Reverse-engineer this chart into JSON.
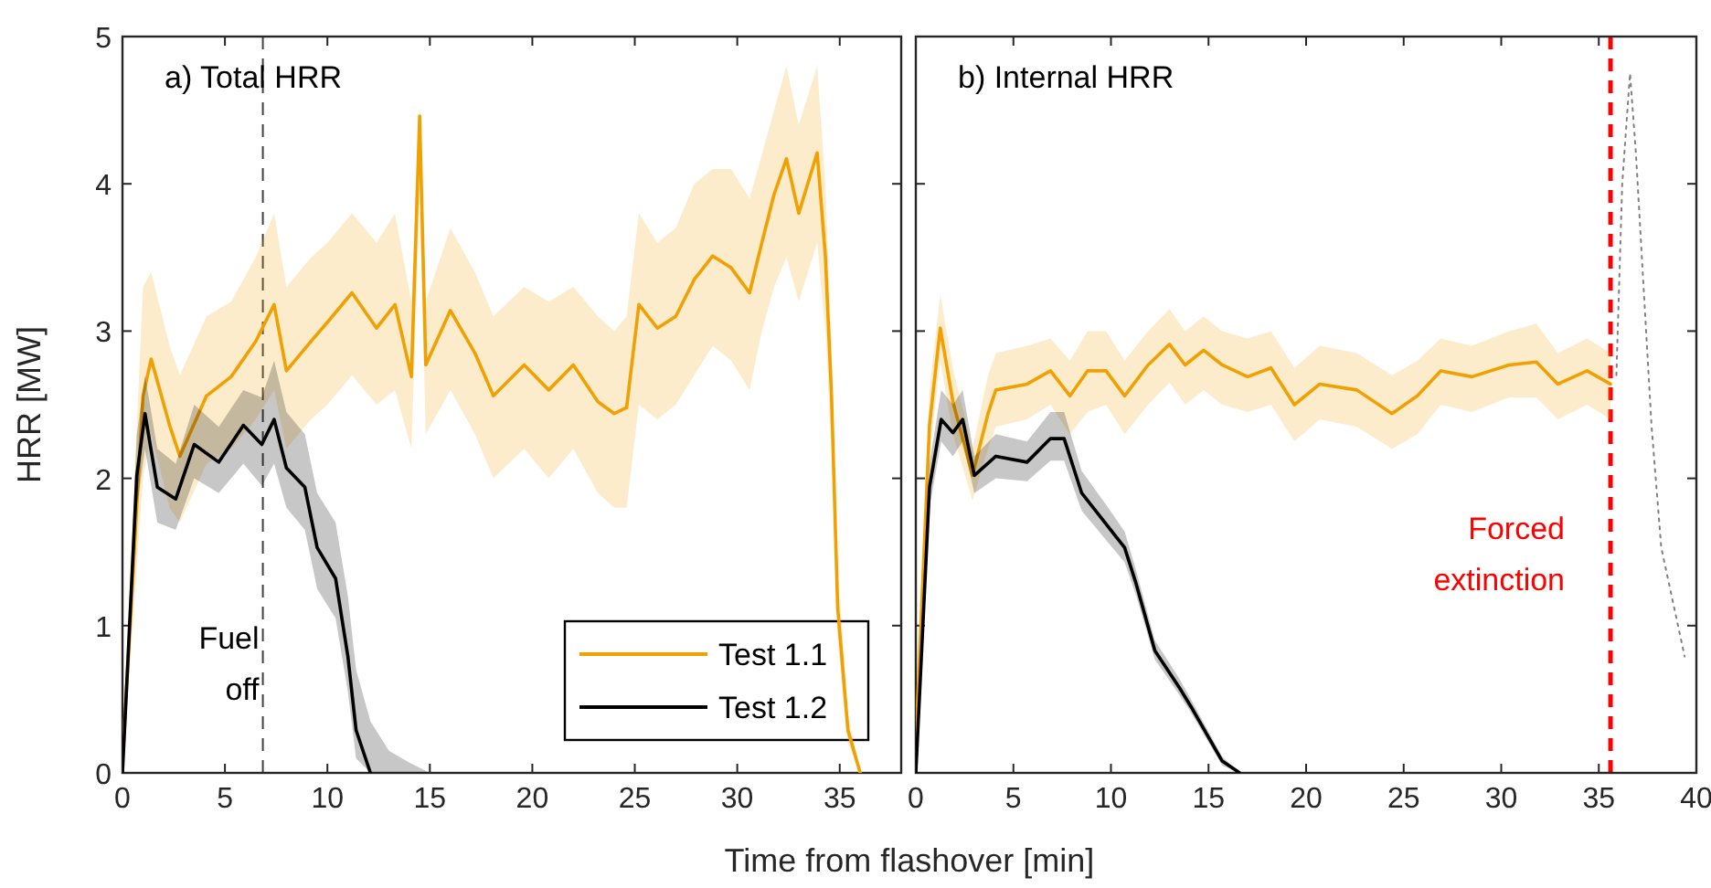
{
  "chart_data": [
    {
      "type": "line",
      "title": "a) Total HRR",
      "xlabel": "Time from flashover [min]",
      "ylabel": "HRR [MW]",
      "xlim": [
        0,
        38
      ],
      "xticks": [
        0,
        5,
        10,
        15,
        20,
        25,
        30,
        35
      ],
      "ylim": [
        0,
        5
      ],
      "yticks": [
        0,
        1,
        2,
        3,
        4,
        5
      ],
      "grid": false,
      "legend": "bottom right",
      "line_style": "solid",
      "marker": "none",
      "ref_lines": [
        {
          "axis": "x",
          "value": 6.85,
          "label": "Fuel off",
          "color": "#404040",
          "line_style": "dashed"
        }
      ],
      "series": [
        {
          "name": "Test 1.1",
          "color": "#f0a000",
          "x": [
            0,
            1,
            1.4,
            2.3,
            2.8,
            4.1,
            5.3,
            6.5,
            7.4,
            8,
            9.2,
            10,
            11.2,
            12.4,
            13.3,
            14.1,
            14.5,
            14.8,
            16,
            17.2,
            18.1,
            19.6,
            20.8,
            22,
            23.2,
            24,
            24.6,
            25.2,
            26.1,
            27,
            27.9,
            28.8,
            29.7,
            30.6,
            31.2,
            31.8,
            32.4,
            33,
            33.9,
            34.3,
            34.6,
            34.9,
            35.4,
            36
          ],
          "values": [
            0.08,
            2.56,
            2.81,
            2.36,
            2.15,
            2.56,
            2.69,
            2.93,
            3.18,
            2.73,
            2.93,
            3.06,
            3.26,
            3.02,
            3.18,
            2.69,
            4.46,
            2.77,
            3.14,
            2.85,
            2.56,
            2.77,
            2.6,
            2.77,
            2.52,
            2.44,
            2.48,
            3.18,
            3.02,
            3.1,
            3.35,
            3.51,
            3.43,
            3.26,
            3.6,
            3.93,
            4.17,
            3.8,
            4.21,
            3.51,
            2.56,
            1.12,
            0.29,
            0
          ],
          "lower": [
            0,
            2.0,
            2.3,
            1.8,
            1.7,
            2.1,
            2.2,
            2.4,
            2.6,
            2.2,
            2.4,
            2.5,
            2.7,
            2.5,
            2.6,
            2.2,
            3.9,
            2.3,
            2.6,
            2.3,
            2.0,
            2.2,
            2.0,
            2.2,
            1.9,
            1.8,
            1.8,
            2.5,
            2.4,
            2.5,
            2.7,
            2.9,
            2.8,
            2.6,
            3.0,
            3.3,
            3.5,
            3.2,
            3.6,
            3.0,
            2.2,
            0.9,
            0.2,
            0
          ],
          "upper": [
            0.2,
            3.3,
            3.4,
            2.9,
            2.7,
            3.1,
            3.2,
            3.5,
            3.8,
            3.3,
            3.5,
            3.6,
            3.8,
            3.6,
            3.8,
            3.2,
            4.5,
            3.2,
            3.7,
            3.4,
            3.1,
            3.3,
            3.2,
            3.3,
            3.1,
            3.0,
            3.1,
            3.8,
            3.6,
            3.7,
            4.0,
            4.1,
            4.1,
            3.9,
            4.2,
            4.5,
            4.8,
            4.4,
            4.8,
            4.0,
            2.9,
            1.4,
            0.4,
            0
          ]
        },
        {
          "name": "Test 1.2",
          "color": "#000000",
          "x": [
            0,
            0.7,
            1.1,
            1.7,
            2.6,
            3.5,
            4.7,
            5.9,
            6.8,
            7.4,
            8,
            8.9,
            9.5,
            10.4,
            11,
            11.4,
            12.1,
            13,
            14,
            15
          ],
          "values": [
            0,
            2.02,
            2.44,
            1.94,
            1.86,
            2.23,
            2.11,
            2.36,
            2.23,
            2.4,
            2.07,
            1.94,
            1.53,
            1.32,
            0.79,
            0.29,
            0,
            null,
            null,
            null
          ],
          "lower": [
            0,
            1.8,
            2.2,
            1.7,
            1.65,
            2.0,
            1.9,
            2.1,
            1.95,
            2.1,
            1.8,
            1.65,
            1.25,
            1.05,
            0.55,
            0.1,
            0,
            0,
            0,
            0
          ],
          "upper": [
            0.1,
            2.3,
            2.7,
            2.2,
            2.1,
            2.5,
            2.35,
            2.6,
            2.55,
            2.8,
            2.45,
            2.3,
            1.9,
            1.7,
            1.2,
            0.7,
            0.35,
            0.15,
            0.07,
            0
          ]
        }
      ]
    },
    {
      "type": "line",
      "title": "b) Internal HRR",
      "xlim": [
        0,
        40
      ],
      "xticks": [
        0,
        5,
        10,
        15,
        20,
        25,
        30,
        35,
        40
      ],
      "ylim": [
        0,
        5
      ],
      "yticks": [
        0,
        1,
        2,
        3,
        4,
        5
      ],
      "tick_labels": "x",
      "grid": false,
      "line_style": "solid",
      "marker": "none",
      "ref_lines": [
        {
          "axis": "x",
          "value": 35.6,
          "label": "Forced extinction",
          "color": "#ff0000",
          "line_style": "dashed"
        }
      ],
      "series": [
        {
          "color": "#f0a000",
          "x": [
            0,
            0.7,
            1.25,
            1.9,
            2.9,
            3.7,
            4.1,
            5.7,
            6.9,
            7.9,
            8.8,
            9.75,
            10.7,
            11.9,
            13,
            13.8,
            14.75,
            15.7,
            17,
            18.2,
            19.4,
            20.7,
            22.6,
            24.4,
            25.7,
            26.9,
            28.5,
            30.4,
            31.8,
            32.9,
            34.4,
            35.6
          ],
          "values": [
            0.2,
            2.36,
            3.02,
            2.52,
            2.02,
            2.44,
            2.6,
            2.64,
            2.73,
            2.56,
            2.73,
            2.73,
            2.56,
            2.77,
            2.91,
            2.77,
            2.87,
            2.77,
            2.69,
            2.75,
            2.5,
            2.64,
            2.6,
            2.44,
            2.56,
            2.73,
            2.69,
            2.77,
            2.79,
            2.64,
            2.73,
            2.64
          ],
          "lower": [
            0.1,
            2.15,
            2.8,
            2.3,
            1.85,
            2.2,
            2.35,
            2.4,
            2.5,
            2.3,
            2.45,
            2.5,
            2.3,
            2.5,
            2.65,
            2.5,
            2.6,
            2.5,
            2.45,
            2.5,
            2.25,
            2.4,
            2.35,
            2.2,
            2.3,
            2.5,
            2.45,
            2.55,
            2.55,
            2.4,
            2.5,
            2.4
          ],
          "upper": [
            0.3,
            2.6,
            3.25,
            2.75,
            2.2,
            2.7,
            2.85,
            2.9,
            2.95,
            2.8,
            3.0,
            3.0,
            2.8,
            3.0,
            3.15,
            3.0,
            3.1,
            3.0,
            2.95,
            3.0,
            2.75,
            2.9,
            2.85,
            2.7,
            2.8,
            2.95,
            2.9,
            3.0,
            3.05,
            2.85,
            2.95,
            2.85
          ]
        },
        {
          "color": "#000000",
          "x": [
            0,
            0.7,
            1.3,
            1.9,
            2.4,
            3,
            4.1,
            5.7,
            6.9,
            7.6,
            8.5,
            9.75,
            10.7,
            11.3,
            12.25,
            13.5,
            14.1,
            15.7,
            16.6
          ],
          "values": [
            0,
            1.94,
            2.4,
            2.31,
            2.4,
            2.02,
            2.15,
            2.11,
            2.27,
            2.27,
            1.9,
            1.69,
            1.53,
            1.28,
            0.83,
            0.58,
            0.45,
            0.08,
            0
          ],
          "lower": [
            0,
            1.8,
            2.25,
            2.15,
            2.25,
            1.9,
            2.0,
            1.98,
            2.12,
            2.12,
            1.78,
            1.58,
            1.43,
            1.2,
            0.77,
            0.53,
            0.41,
            0.05,
            0
          ],
          "upper": [
            0.05,
            2.1,
            2.6,
            2.5,
            2.6,
            2.15,
            2.3,
            2.25,
            2.45,
            2.45,
            2.05,
            1.82,
            1.64,
            1.37,
            0.9,
            0.64,
            0.5,
            0.11,
            0
          ]
        },
        {
          "color": "#808080",
          "line_style": "dotted",
          "x": [
            35.9,
            36.2,
            36.6,
            36.9,
            37.7,
            38.2,
            39.4
          ],
          "values": [
            2.7,
            4.0,
            4.75,
            4.21,
            2.36,
            1.53,
            0.79
          ]
        }
      ]
    }
  ]
}
